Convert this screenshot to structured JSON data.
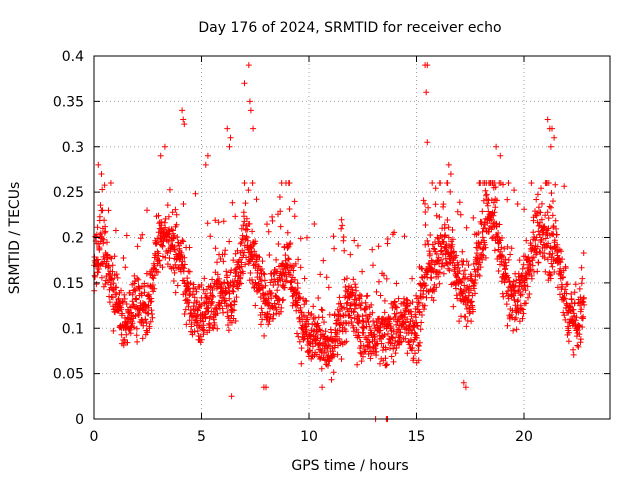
{
  "chart_data": {
    "type": "scatter",
    "title": "Day 176 of 2024, SRMTID for receiver echo",
    "xlabel": "GPS time / hours",
    "ylabel": "SRMTID / TECUs",
    "xlim": [
      0,
      24
    ],
    "ylim": [
      0,
      0.4
    ],
    "xticks": [
      0,
      5,
      10,
      15,
      20
    ],
    "xtick_labels": [
      "0",
      "5",
      "10",
      "15",
      "20"
    ],
    "yticks": [
      0,
      0.05,
      0.1,
      0.15,
      0.2,
      0.25,
      0.3,
      0.35,
      0.4
    ],
    "ytick_labels": [
      "0",
      "0.05",
      "0.1",
      "0.15",
      "0.2",
      "0.25",
      "0.3",
      "0.35",
      "0.4"
    ],
    "grid": true,
    "marker": "+",
    "color": "#ff0000",
    "series": [
      {
        "name": "SRMTID",
        "profile": [
          {
            "x": 0.0,
            "y": 0.16
          },
          {
            "x": 0.3,
            "y": 0.2
          },
          {
            "x": 0.6,
            "y": 0.17
          },
          {
            "x": 1.0,
            "y": 0.13
          },
          {
            "x": 1.5,
            "y": 0.1
          },
          {
            "x": 2.0,
            "y": 0.13
          },
          {
            "x": 2.5,
            "y": 0.12
          },
          {
            "x": 3.0,
            "y": 0.19
          },
          {
            "x": 3.5,
            "y": 0.2
          },
          {
            "x": 4.0,
            "y": 0.18
          },
          {
            "x": 4.5,
            "y": 0.12
          },
          {
            "x": 5.0,
            "y": 0.11
          },
          {
            "x": 5.5,
            "y": 0.13
          },
          {
            "x": 6.0,
            "y": 0.15
          },
          {
            "x": 6.5,
            "y": 0.13
          },
          {
            "x": 7.0,
            "y": 0.2
          },
          {
            "x": 7.5,
            "y": 0.17
          },
          {
            "x": 8.0,
            "y": 0.13
          },
          {
            "x": 8.5,
            "y": 0.14
          },
          {
            "x": 9.0,
            "y": 0.18
          },
          {
            "x": 9.5,
            "y": 0.12
          },
          {
            "x": 10.0,
            "y": 0.1
          },
          {
            "x": 10.5,
            "y": 0.09
          },
          {
            "x": 11.0,
            "y": 0.07
          },
          {
            "x": 11.5,
            "y": 0.11
          },
          {
            "x": 12.0,
            "y": 0.13
          },
          {
            "x": 12.5,
            "y": 0.1
          },
          {
            "x": 13.0,
            "y": 0.09
          },
          {
            "x": 13.5,
            "y": 0.09
          },
          {
            "x": 14.0,
            "y": 0.1
          },
          {
            "x": 14.5,
            "y": 0.11
          },
          {
            "x": 15.0,
            "y": 0.1
          },
          {
            "x": 15.5,
            "y": 0.16
          },
          {
            "x": 16.0,
            "y": 0.18
          },
          {
            "x": 16.5,
            "y": 0.19
          },
          {
            "x": 17.0,
            "y": 0.15
          },
          {
            "x": 17.5,
            "y": 0.13
          },
          {
            "x": 18.0,
            "y": 0.2
          },
          {
            "x": 18.5,
            "y": 0.23
          },
          {
            "x": 19.0,
            "y": 0.17
          },
          {
            "x": 19.5,
            "y": 0.13
          },
          {
            "x": 20.0,
            "y": 0.14
          },
          {
            "x": 20.5,
            "y": 0.2
          },
          {
            "x": 21.0,
            "y": 0.2
          },
          {
            "x": 21.5,
            "y": 0.19
          },
          {
            "x": 22.0,
            "y": 0.12
          },
          {
            "x": 22.5,
            "y": 0.11
          },
          {
            "x": 22.8,
            "y": 0.12
          }
        ],
        "points_per_hour": 110,
        "spread": 0.035,
        "spikes": [
          {
            "x": 0.2,
            "y": 0.28
          },
          {
            "x": 0.35,
            "y": 0.27
          },
          {
            "x": 3.1,
            "y": 0.29
          },
          {
            "x": 3.3,
            "y": 0.3
          },
          {
            "x": 4.1,
            "y": 0.34
          },
          {
            "x": 4.15,
            "y": 0.33
          },
          {
            "x": 4.2,
            "y": 0.325
          },
          {
            "x": 5.2,
            "y": 0.28
          },
          {
            "x": 5.3,
            "y": 0.29
          },
          {
            "x": 6.2,
            "y": 0.32
          },
          {
            "x": 6.3,
            "y": 0.3
          },
          {
            "x": 6.35,
            "y": 0.31
          },
          {
            "x": 7.0,
            "y": 0.37
          },
          {
            "x": 7.2,
            "y": 0.39
          },
          {
            "x": 7.25,
            "y": 0.35
          },
          {
            "x": 7.3,
            "y": 0.34
          },
          {
            "x": 7.4,
            "y": 0.32
          },
          {
            "x": 13.1,
            "y": 0.0
          },
          {
            "x": 13.6,
            "y": 0.0
          },
          {
            "x": 13.65,
            "y": 0.0
          },
          {
            "x": 15.4,
            "y": 0.39
          },
          {
            "x": 15.5,
            "y": 0.39
          },
          {
            "x": 15.45,
            "y": 0.36
          },
          {
            "x": 15.5,
            "y": 0.305
          },
          {
            "x": 16.5,
            "y": 0.28
          },
          {
            "x": 16.6,
            "y": 0.27
          },
          {
            "x": 17.2,
            "y": 0.04
          },
          {
            "x": 17.3,
            "y": 0.035
          },
          {
            "x": 18.7,
            "y": 0.3
          },
          {
            "x": 18.9,
            "y": 0.29
          },
          {
            "x": 21.1,
            "y": 0.33
          },
          {
            "x": 21.2,
            "y": 0.32
          },
          {
            "x": 21.3,
            "y": 0.32
          },
          {
            "x": 21.4,
            "y": 0.31
          },
          {
            "x": 21.25,
            "y": 0.3
          },
          {
            "x": 6.4,
            "y": 0.025
          },
          {
            "x": 7.9,
            "y": 0.035
          },
          {
            "x": 8.0,
            "y": 0.035
          }
        ]
      }
    ]
  }
}
